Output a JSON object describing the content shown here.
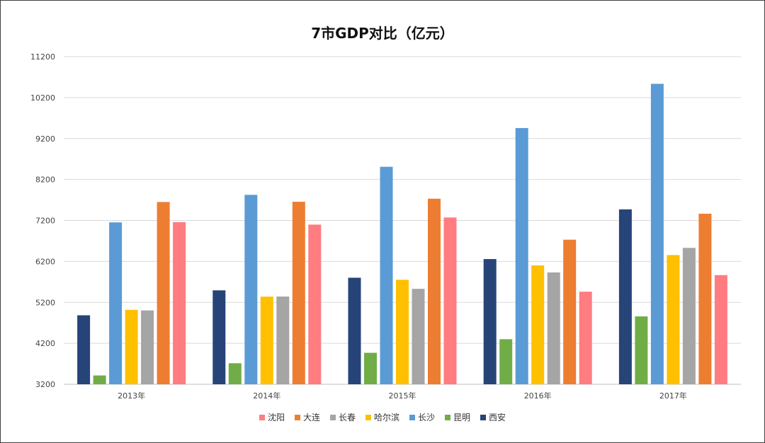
{
  "chart_data": {
    "type": "bar",
    "title": "7市GDP对比（亿元）",
    "xlabel": "",
    "ylabel": "",
    "ylim": [
      3200,
      11200
    ],
    "yticks": [
      3200,
      4200,
      5200,
      6200,
      7200,
      8200,
      9200,
      10200,
      11200
    ],
    "grid": true,
    "legend_position": "bottom",
    "categories": [
      "2013年",
      "2014年",
      "2015年",
      "2016年",
      "2017年"
    ],
    "series": [
      {
        "name": "西安",
        "color": "#264478",
        "values": [
          4884,
          5493,
          5801,
          6257,
          7470
        ]
      },
      {
        "name": "昆明",
        "color": "#70AD47",
        "values": [
          3415,
          3713,
          3968,
          4300,
          4857
        ]
      },
      {
        "name": "长沙",
        "color": "#5B9BD5",
        "values": [
          7153,
          7825,
          8510,
          9456,
          10536
        ]
      },
      {
        "name": "哈尔滨",
        "color": "#FFC000",
        "values": [
          5017,
          5340,
          5751,
          6102,
          6355
        ]
      },
      {
        "name": "长春",
        "color": "#A5A5A5",
        "values": [
          5003,
          5342,
          5530,
          5930,
          6530
        ]
      },
      {
        "name": "大连",
        "color": "#ED7D31",
        "values": [
          7650,
          7656,
          7731,
          6730,
          7364
        ]
      },
      {
        "name": "沈阳",
        "color": "#FF7C80",
        "values": [
          7159,
          7098,
          7272,
          5460,
          5865
        ]
      }
    ],
    "legend_order": [
      "沈阳",
      "大连",
      "长春",
      "哈尔滨",
      "长沙",
      "昆明",
      "西安"
    ]
  }
}
